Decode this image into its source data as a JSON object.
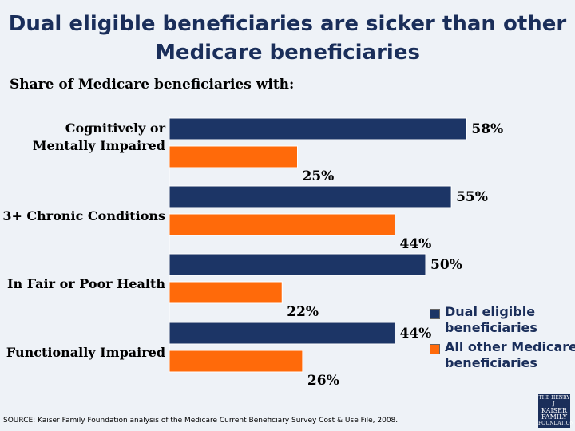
{
  "title": "Dual eligible beneficiaries are sicker than other Medicare beneficiaries",
  "subtitle": "Share of Medicare beneficiaries with:",
  "source": "SOURCE: Kaiser Family Foundation analysis of the Medicare Current Beneficiary Survey Cost & Use File, 2008.",
  "logo": [
    "THE HENRY J.",
    "KAISER",
    "FAMILY",
    "FOUNDATION"
  ],
  "chart_data": {
    "type": "bar",
    "orientation": "horizontal",
    "categories": [
      [
        "Cognitively or",
        "Mentally Impaired"
      ],
      [
        "3+ Chronic Conditions"
      ],
      [
        "In Fair or Poor Health"
      ],
      [
        "Functionally Impaired"
      ]
    ],
    "series": [
      {
        "name": "Dual eligible beneficiaries",
        "values": [
          58,
          55,
          50,
          44
        ],
        "labels": [
          "58%",
          "55%",
          "50%",
          "44%"
        ],
        "color": "#1c3566"
      },
      {
        "name": "All other Medicare beneficiaries",
        "values": [
          25,
          44,
          22,
          26
        ],
        "labels": [
          "25%",
          "44%",
          "22%",
          "26%"
        ],
        "color": "#ff6a0a"
      }
    ],
    "xlim": [
      0,
      100
    ],
    "grid": false,
    "legend": "bottom-right"
  }
}
